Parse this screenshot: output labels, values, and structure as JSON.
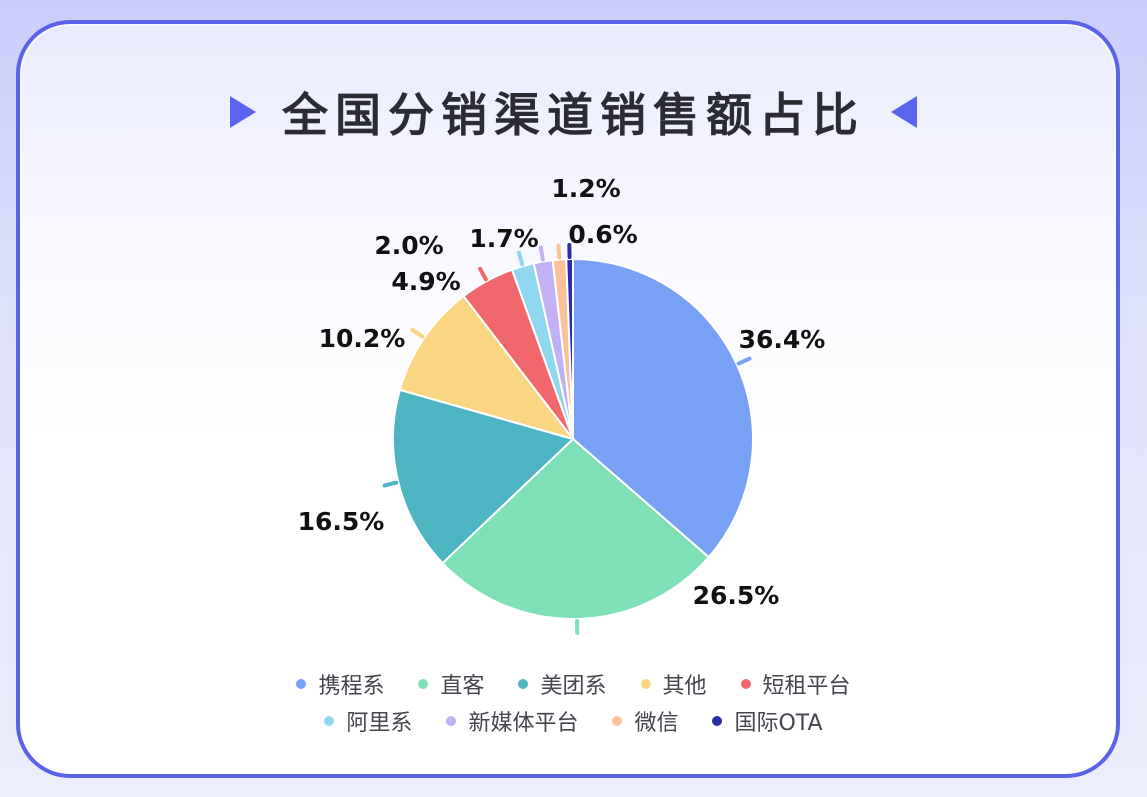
{
  "chart_data": {
    "type": "pie",
    "title": "全国分销渠道销售额占比",
    "slices": [
      {
        "name": "携程系",
        "value": 36.4,
        "label": "36.4%",
        "color": "#78a0f5"
      },
      {
        "name": "直客",
        "value": 26.5,
        "label": "26.5%",
        "color": "#7fdfb7"
      },
      {
        "name": "美团系",
        "value": 16.5,
        "label": "16.5%",
        "color": "#4db5c2"
      },
      {
        "name": "其他",
        "value": 10.2,
        "label": "10.2%",
        "color": "#fad683"
      },
      {
        "name": "短租平台",
        "value": 4.9,
        "label": "4.9%",
        "color": "#f0686e"
      },
      {
        "name": "阿里系",
        "value": 2.0,
        "label": "2.0%",
        "color": "#8fd6ef"
      },
      {
        "name": "新媒体平台",
        "value": 1.7,
        "label": "1.7%",
        "color": "#c2b0f4"
      },
      {
        "name": "微信",
        "value": 1.2,
        "label": "1.2%",
        "color": "#f8c19a"
      },
      {
        "name": "国际OTA",
        "value": 0.6,
        "label": "0.6%",
        "color": "#2a2fa7"
      }
    ],
    "legend": "bottom"
  }
}
